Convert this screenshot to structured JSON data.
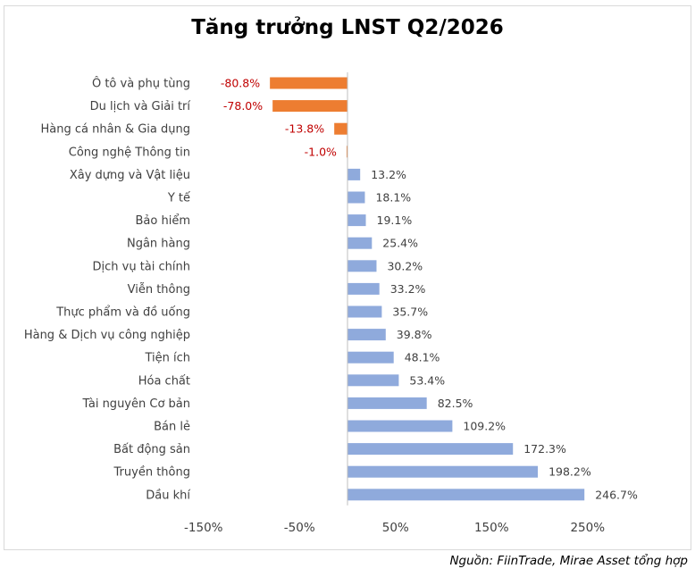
{
  "chart_data": {
    "type": "bar",
    "orientation": "horizontal",
    "title": "Tăng trưởng LNST Q2/2026",
    "categories": [
      "Ô tô và phụ tùng",
      "Du lịch và Giải trí",
      "Hàng cá nhân & Gia dụng",
      "Công nghệ Thông tin",
      "Xây dựng và Vật liệu",
      "Y tế",
      "Bảo hiểm",
      "Ngân hàng",
      "Dịch vụ tài chính",
      "Viễn thông",
      "Thực phẩm và đồ uống",
      "Hàng & Dịch vụ công nghiệp",
      "Tiện ích",
      "Hóa chất",
      "Tài nguyên Cơ bản",
      "Bán lẻ",
      "Bất động sản",
      "Truyền thông",
      "Dầu khí"
    ],
    "values": [
      -80.8,
      -78.0,
      -13.8,
      -1.0,
      13.2,
      18.1,
      19.1,
      25.4,
      30.2,
      33.2,
      35.7,
      39.8,
      48.1,
      53.4,
      82.5,
      109.2,
      172.3,
      198.2,
      246.7
    ],
    "value_labels": [
      "-80.8%",
      "-78.0%",
      "-13.8%",
      "-1.0%",
      "13.2%",
      "18.1%",
      "19.1%",
      "25.4%",
      "30.2%",
      "33.2%",
      "35.7%",
      "39.8%",
      "48.1%",
      "53.4%",
      "82.5%",
      "109.2%",
      "172.3%",
      "198.2%",
      "246.7%"
    ],
    "x_ticks": [
      "-150%",
      "-50%",
      "50%",
      "150%",
      "250%"
    ],
    "x_tick_values": [
      -150,
      -50,
      50,
      150,
      250
    ],
    "xlim": [
      -150,
      250
    ],
    "grid": false,
    "colors": {
      "negative": "#ed7d31",
      "positive": "#8faadc",
      "negative_label": "#c00000",
      "positive_label": "#404040"
    }
  },
  "source_note": "Nguồn: FiinTrade, Mirae Asset tổng hợp"
}
